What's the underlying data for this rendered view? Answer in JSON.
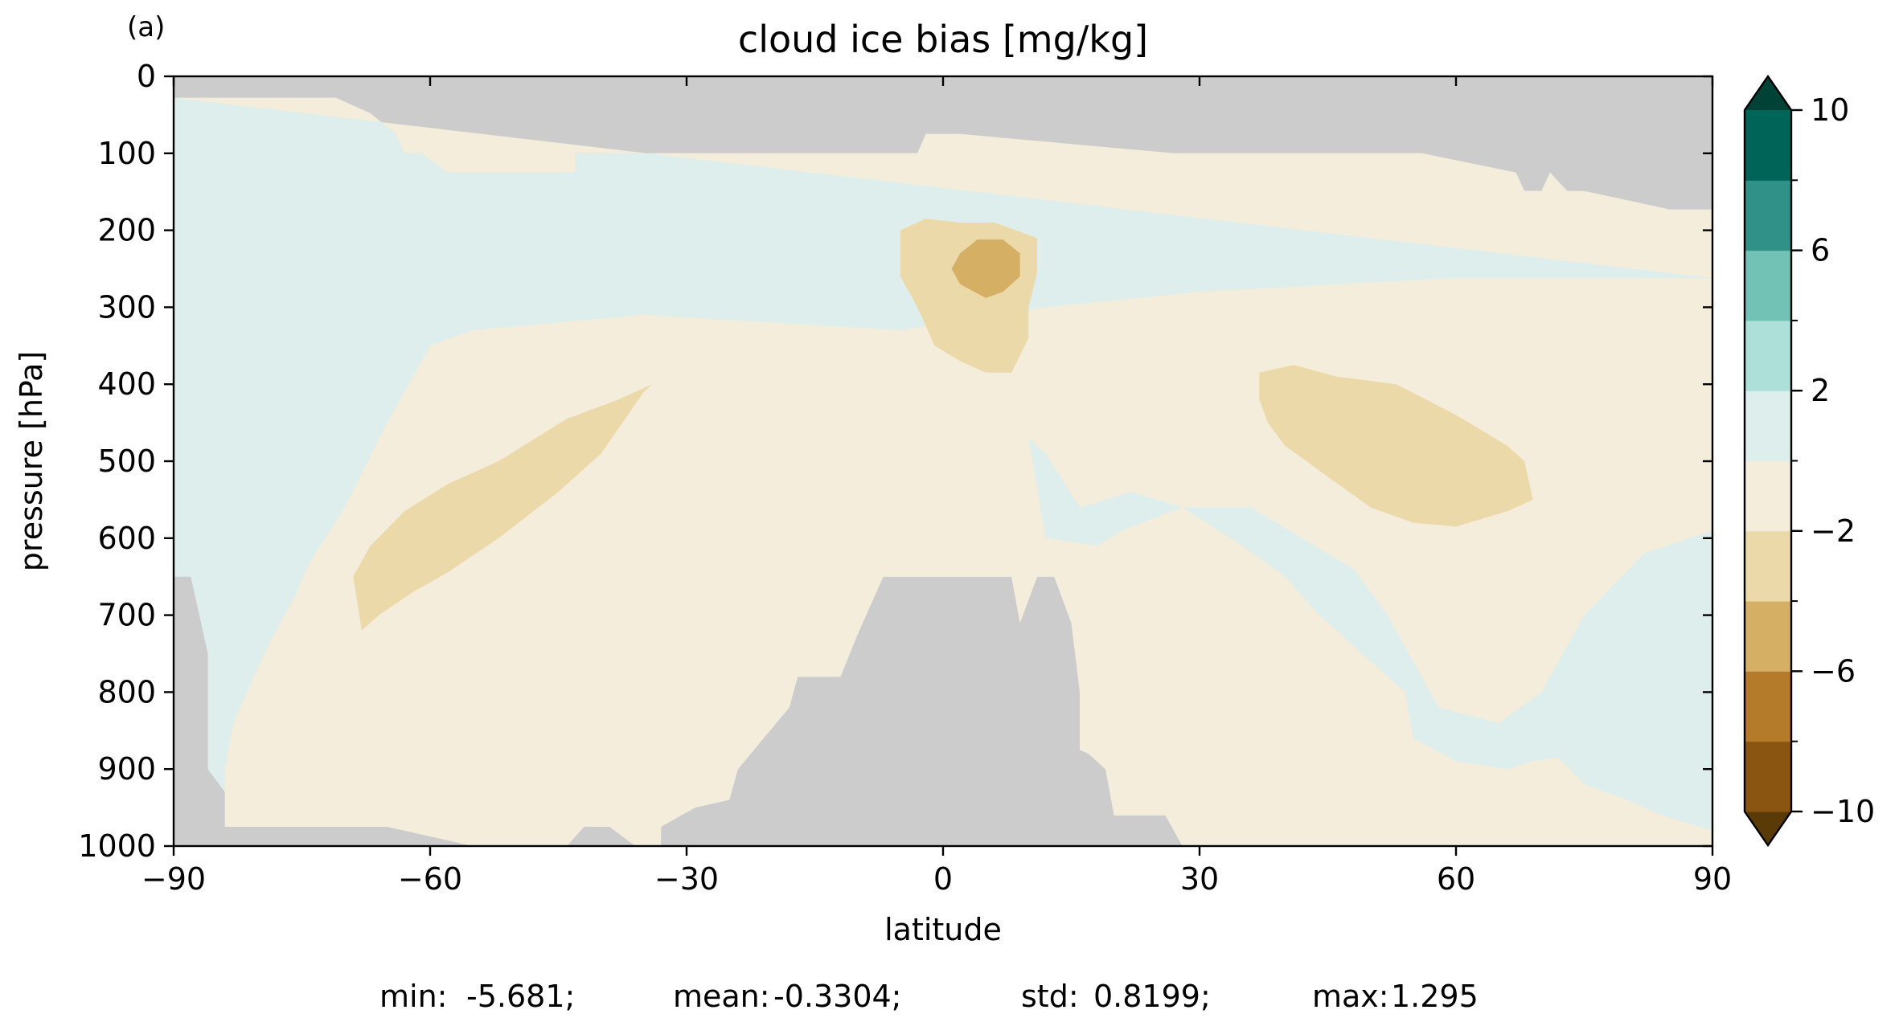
{
  "chart_data": {
    "type": "heatmap",
    "panel_label": "(a)",
    "title": "cloud ice bias [mg/kg]",
    "xlabel": "latitude",
    "ylabel": "pressure [hPa]",
    "xlim": [
      -90,
      90
    ],
    "ylim": [
      1000,
      0
    ],
    "x_ticks": [
      "−90",
      "−60",
      "−30",
      "0",
      "30",
      "60",
      "90"
    ],
    "x_tick_values": [
      -90,
      -60,
      -30,
      0,
      30,
      60,
      90
    ],
    "y_ticks": [
      "0",
      "100",
      "200",
      "300",
      "400",
      "500",
      "600",
      "700",
      "800",
      "900",
      "1000"
    ],
    "y_tick_values": [
      0,
      100,
      200,
      300,
      400,
      500,
      600,
      700,
      800,
      900,
      1000
    ],
    "colorbar": {
      "levels": [
        -10,
        -8,
        -6,
        -4,
        -2,
        0,
        2,
        4,
        6,
        8,
        10
      ],
      "tick_labels": [
        "10",
        "6",
        "2",
        "−2",
        "−6",
        "−10"
      ],
      "tick_values": [
        10,
        6,
        2,
        -2,
        -6,
        -10
      ],
      "extend": "both",
      "colors": [
        "#5a3a07",
        "#8a5510",
        "#b47c2a",
        "#d4af64",
        "#ecd9a9",
        "#f5eddb",
        "#deeeec",
        "#ade0d8",
        "#72c2b6",
        "#2f9187",
        "#006558",
        "#004236"
      ]
    },
    "missing_color": "#cccccc",
    "regions": [
      {
        "name": "no-data-top",
        "level": null,
        "color": "#cccccc",
        "polygon": [
          [
            -90,
            0
          ],
          [
            90,
            0
          ],
          [
            90,
            173
          ],
          [
            85,
            173
          ],
          [
            85,
            173
          ],
          [
            75,
            149
          ],
          [
            73,
            149
          ],
          [
            71,
            125
          ],
          [
            70,
            149
          ],
          [
            68,
            149
          ],
          [
            67,
            125
          ],
          [
            56,
            100
          ],
          [
            27,
            100
          ],
          [
            2,
            75
          ],
          [
            -2,
            75
          ],
          [
            -3,
            100
          ],
          [
            -26,
            100
          ],
          [
            -43,
            100
          ],
          [
            -43,
            125
          ],
          [
            -58,
            125
          ],
          [
            -61,
            100
          ],
          [
            -63,
            100
          ],
          [
            -64,
            75
          ],
          [
            -67,
            48
          ],
          [
            -71,
            28
          ],
          [
            -90,
            28
          ]
        ]
      },
      {
        "name": "no-data-bottom-left",
        "level": null,
        "color": "#cccccc",
        "polygon": [
          [
            -90,
            650
          ],
          [
            -88,
            650
          ],
          [
            -86,
            750
          ],
          [
            -86,
            900
          ],
          [
            -84,
            930
          ],
          [
            -84,
            975
          ],
          [
            -65,
            975
          ],
          [
            -55,
            1000
          ],
          [
            -90,
            1000
          ]
        ]
      },
      {
        "name": "no-data-bottom-mid",
        "level": null,
        "color": "#cccccc",
        "polygon": [
          [
            -44,
            1000
          ],
          [
            -42,
            975
          ],
          [
            -39,
            975
          ],
          [
            -36,
            1000
          ],
          [
            -33,
            1000
          ],
          [
            -33,
            975
          ],
          [
            -29,
            950
          ],
          [
            -25,
            940
          ],
          [
            -24,
            900
          ],
          [
            -18,
            820
          ],
          [
            -17,
            780
          ],
          [
            -12,
            780
          ],
          [
            -10,
            725
          ],
          [
            -7,
            650
          ],
          [
            8,
            650
          ],
          [
            9,
            710
          ],
          [
            11,
            650
          ],
          [
            13,
            650
          ],
          [
            15,
            710
          ],
          [
            16,
            800
          ],
          [
            16,
            875
          ],
          [
            17,
            880
          ],
          [
            19,
            900
          ],
          [
            20,
            960
          ],
          [
            26,
            960
          ],
          [
            28,
            1000
          ]
        ]
      },
      {
        "name": "negative-band-outer",
        "level": -1,
        "color": "#f5eddb",
        "polygon": [
          [
            -90,
            28
          ],
          [
            -71,
            28
          ],
          [
            -67,
            48
          ],
          [
            -64,
            75
          ],
          [
            -63,
            100
          ],
          [
            -61,
            100
          ],
          [
            -58,
            125
          ],
          [
            -43,
            125
          ],
          [
            -43,
            100
          ],
          [
            -26,
            100
          ],
          [
            -3,
            100
          ],
          [
            -2,
            75
          ],
          [
            2,
            75
          ],
          [
            27,
            100
          ],
          [
            56,
            100
          ],
          [
            67,
            125
          ],
          [
            68,
            149
          ],
          [
            70,
            149
          ],
          [
            71,
            125
          ],
          [
            73,
            149
          ],
          [
            75,
            149
          ],
          [
            85,
            173
          ],
          [
            90,
            173
          ],
          [
            90,
            262
          ],
          [
            60,
            262
          ],
          [
            30,
            280
          ],
          [
            12,
            300
          ],
          [
            -5,
            330
          ],
          [
            -20,
            320
          ],
          [
            -35,
            310
          ],
          [
            -55,
            330
          ],
          [
            -60,
            350
          ],
          [
            -65,
            450
          ],
          [
            -70,
            560
          ],
          [
            -74,
            630
          ],
          [
            -76,
            680
          ],
          [
            -79,
            740
          ],
          [
            -81,
            790
          ],
          [
            -83,
            840
          ],
          [
            -84,
            900
          ],
          [
            -84,
            975
          ],
          [
            -65,
            975
          ],
          [
            -55,
            1000
          ],
          [
            -44,
            1000
          ],
          [
            -42,
            975
          ],
          [
            -39,
            975
          ],
          [
            -36,
            1000
          ],
          [
            -33,
            1000
          ],
          [
            -33,
            975
          ],
          [
            -29,
            950
          ],
          [
            -25,
            940
          ],
          [
            -24,
            900
          ],
          [
            -18,
            820
          ],
          [
            -17,
            780
          ],
          [
            -12,
            780
          ],
          [
            -10,
            725
          ],
          [
            -7,
            650
          ],
          [
            8,
            650
          ],
          [
            9,
            710
          ],
          [
            11,
            650
          ],
          [
            13,
            650
          ],
          [
            15,
            710
          ],
          [
            16,
            800
          ],
          [
            16,
            875
          ],
          [
            17,
            880
          ],
          [
            19,
            900
          ],
          [
            20,
            960
          ],
          [
            26,
            960
          ],
          [
            28,
            1000
          ],
          [
            90,
            1000
          ],
          [
            90,
            980
          ],
          [
            84,
            960
          ],
          [
            80,
            940
          ],
          [
            75,
            920
          ],
          [
            72,
            885
          ],
          [
            69,
            890
          ],
          [
            66,
            900
          ],
          [
            60,
            890
          ],
          [
            55,
            860
          ],
          [
            54,
            800
          ],
          [
            50,
            760
          ],
          [
            44,
            700
          ],
          [
            40,
            650
          ],
          [
            35,
            610
          ],
          [
            28,
            560
          ],
          [
            22,
            540
          ],
          [
            16,
            560
          ],
          [
            12,
            490
          ],
          [
            10,
            470
          ],
          [
            12,
            600
          ],
          [
            18,
            610
          ],
          [
            21,
            590
          ],
          [
            28,
            560
          ],
          [
            36,
            560
          ],
          [
            42,
            600
          ],
          [
            48,
            640
          ],
          [
            52,
            700
          ],
          [
            55,
            760
          ],
          [
            58,
            820
          ],
          [
            65,
            840
          ],
          [
            70,
            800
          ],
          [
            75,
            700
          ],
          [
            82,
            620
          ],
          [
            90,
            590
          ],
          [
            90,
            262
          ]
        ]
      },
      {
        "name": "negative-sh-midlevel",
        "level": -3,
        "color": "#ecd9a9",
        "polygon": [
          [
            -34,
            400
          ],
          [
            -38,
            420
          ],
          [
            -44,
            445
          ],
          [
            -52,
            500
          ],
          [
            -58,
            530
          ],
          [
            -63,
            565
          ],
          [
            -67,
            610
          ],
          [
            -69,
            650
          ],
          [
            -68,
            720
          ],
          [
            -66,
            700
          ],
          [
            -62,
            670
          ],
          [
            -58,
            645
          ],
          [
            -52,
            600
          ],
          [
            -45,
            540
          ],
          [
            -40,
            490
          ],
          [
            -35,
            410
          ]
        ]
      },
      {
        "name": "negative-tropical-upper",
        "level": -3,
        "color": "#ecd9a9",
        "polygon": [
          [
            -5,
            200
          ],
          [
            -2,
            185
          ],
          [
            2,
            190
          ],
          [
            6,
            190
          ],
          [
            11,
            210
          ],
          [
            11,
            255
          ],
          [
            10,
            300
          ],
          [
            10,
            340
          ],
          [
            8,
            385
          ],
          [
            5,
            385
          ],
          [
            2,
            370
          ],
          [
            -1,
            350
          ],
          [
            -3,
            300
          ],
          [
            -5,
            260
          ]
        ]
      },
      {
        "name": "negative-tropical-core",
        "level": -5,
        "color": "#d4af64",
        "polygon": [
          [
            2,
            230
          ],
          [
            4,
            212
          ],
          [
            7,
            212
          ],
          [
            9,
            230
          ],
          [
            9,
            260
          ],
          [
            7,
            280
          ],
          [
            5,
            288
          ],
          [
            2,
            270
          ],
          [
            1,
            250
          ]
        ]
      },
      {
        "name": "negative-nh-midlevel",
        "level": -3,
        "color": "#ecd9a9",
        "polygon": [
          [
            37,
            385
          ],
          [
            41,
            375
          ],
          [
            46,
            390
          ],
          [
            53,
            400
          ],
          [
            60,
            440
          ],
          [
            66,
            480
          ],
          [
            68,
            500
          ],
          [
            69,
            550
          ],
          [
            66,
            565
          ],
          [
            60,
            585
          ],
          [
            55,
            580
          ],
          [
            50,
            560
          ],
          [
            45,
            520
          ],
          [
            40,
            480
          ],
          [
            38,
            450
          ],
          [
            37,
            420
          ]
        ]
      }
    ],
    "stats": [
      {
        "label": "min:",
        "value": "-5.681;"
      },
      {
        "label": "mean:",
        "value": "-0.3304;"
      },
      {
        "label": "std:",
        "value": "0.8199;"
      },
      {
        "label": "max:",
        "value": "1.295"
      }
    ],
    "grid": false
  }
}
